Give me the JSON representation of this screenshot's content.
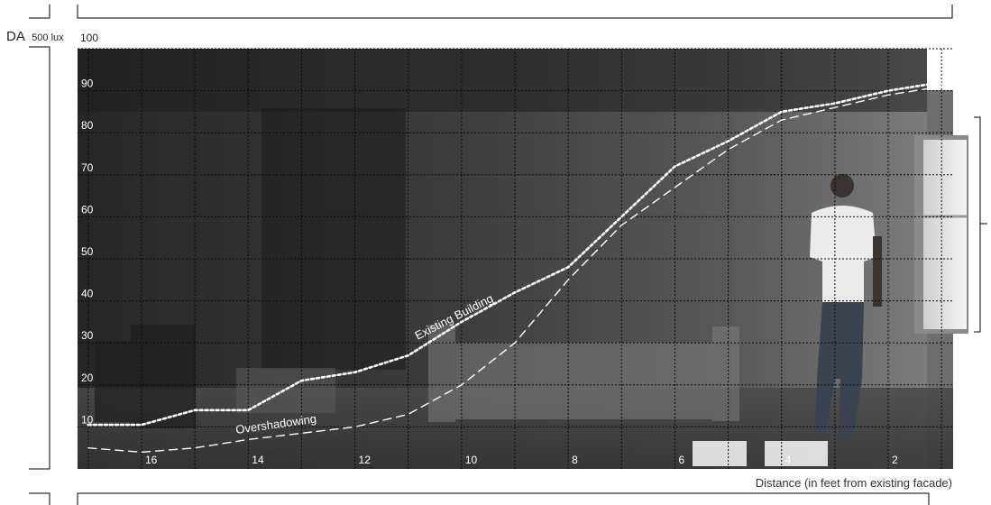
{
  "chart_data": {
    "type": "line",
    "title": "",
    "ylabel_main": "DA",
    "ylabel_sub": "500 lux",
    "xlabel": "Distance (in feet from existing facade)",
    "xlim": [
      17.2,
      0.8
    ],
    "ylim": [
      0,
      100
    ],
    "x_ticks": [
      "16",
      "14",
      "12",
      "10",
      "8",
      "6",
      "4",
      "2"
    ],
    "y_ticks": [
      "10",
      "20",
      "30",
      "40",
      "50",
      "60",
      "70",
      "80",
      "90",
      "100"
    ],
    "series": [
      {
        "name": "Existing Building",
        "style": "dotted",
        "x": [
          17.0,
          16.0,
          15.0,
          14.0,
          13.0,
          12.0,
          11.0,
          10.0,
          9.0,
          8.0,
          7.0,
          6.0,
          5.0,
          4.0,
          3.0,
          2.0,
          1.0
        ],
        "y": [
          10.5,
          10.5,
          14,
          14,
          21,
          23,
          27,
          35,
          42,
          48,
          60,
          72,
          78,
          85,
          87,
          90,
          92
        ]
      },
      {
        "name": "Overshadowing",
        "style": "dashed",
        "x": [
          17.0,
          16.0,
          15.0,
          14.0,
          13.0,
          12.0,
          11.0,
          10.0,
          9.0,
          8.0,
          7.0,
          6.0,
          5.0,
          4.0,
          3.0,
          2.0,
          1.0
        ],
        "y": [
          5,
          4,
          5,
          7,
          8.5,
          10,
          13,
          20,
          30,
          45,
          58,
          67,
          76,
          83,
          86,
          89,
          91
        ]
      }
    ],
    "grid": true,
    "background": "photograph of a dim interior room with a person walking toward a window"
  },
  "colors": {
    "grid": "#0a0a0a",
    "line": "#ffffff",
    "tick_label": "#ffffff",
    "frame": "#000000"
  }
}
